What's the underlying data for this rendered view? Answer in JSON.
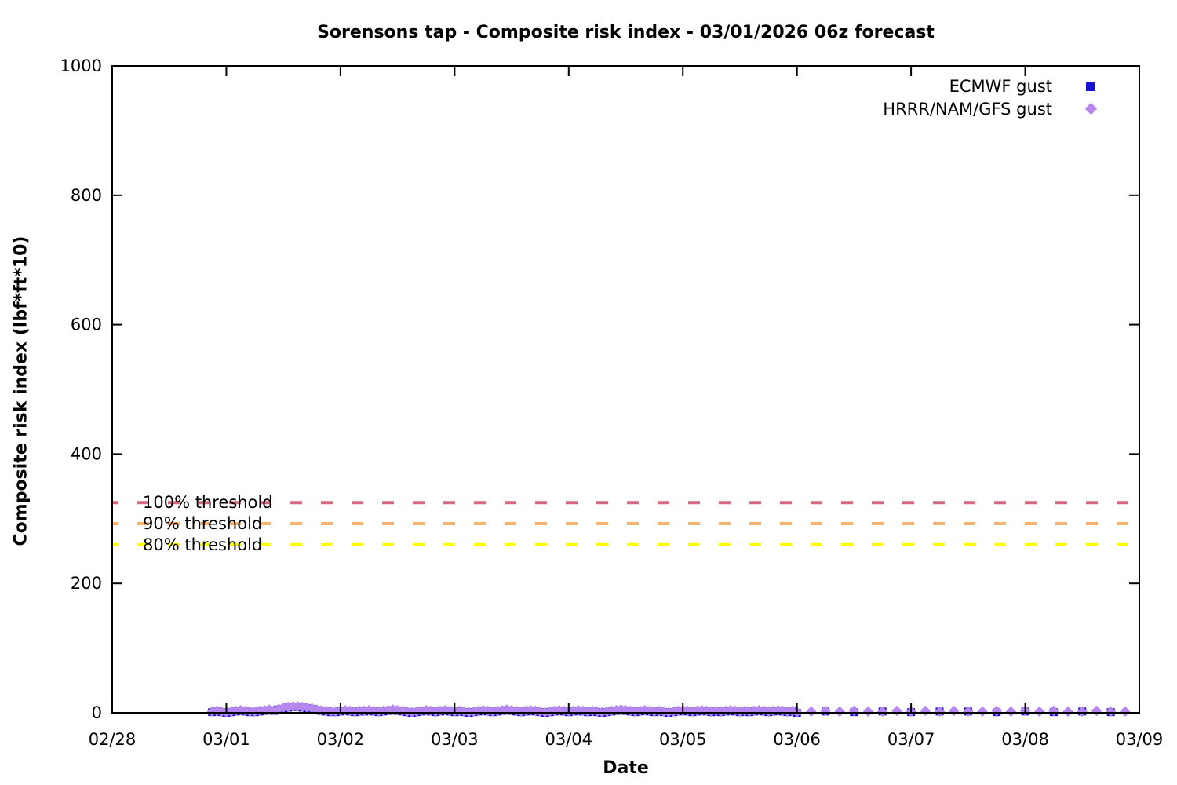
{
  "chart_data": {
    "type": "scatter",
    "title": "Sorensons tap - Composite risk index - 03/01/2026 06z forecast",
    "xlabel": "Date",
    "ylabel": "Composite risk index (lbf*ft*10)",
    "x_axis": {
      "tick_labels": [
        "02/28",
        "03/01",
        "03/02",
        "03/03",
        "03/04",
        "03/05",
        "03/06",
        "03/07",
        "03/08",
        "03/09"
      ],
      "hours_per_tick": 24,
      "hours_total": 216
    },
    "y_axis": {
      "ticks": [
        0,
        200,
        400,
        600,
        800,
        1000
      ],
      "lim": [
        0,
        1000
      ]
    },
    "grid": false,
    "legend_position": "top-right-inside",
    "thresholds": [
      {
        "label": "100% threshold",
        "value": 325,
        "color": "#d5687e"
      },
      {
        "label": "90% threshold",
        "value": 292.5,
        "color": "#f7b26e"
      },
      {
        "label": "80% threshold",
        "value": 260,
        "color": "#ffff00"
      }
    ],
    "series": [
      {
        "name": "ECMWF gust",
        "marker": "square",
        "color": "#1414d2",
        "segments": [
          {
            "start_hour": 21,
            "step_hours": 1,
            "values": [
              1,
              2,
              1,
              0,
              1,
              2,
              3,
              2,
              1,
              1,
              2,
              3,
              4,
              3,
              5,
              6,
              8,
              9,
              9,
              8,
              7,
              6,
              4,
              3,
              2,
              1,
              1,
              2,
              3,
              2,
              1,
              2,
              2,
              3,
              2,
              1,
              2,
              3,
              4,
              3,
              2,
              1,
              0,
              1,
              2,
              3,
              2,
              1,
              2,
              3,
              2,
              1,
              2,
              1,
              0,
              1,
              2,
              3,
              2,
              1,
              2,
              3,
              4,
              3,
              2,
              1,
              2,
              3,
              2,
              1,
              0,
              1,
              2,
              3,
              2,
              1,
              2,
              3,
              2,
              1,
              2,
              1,
              0,
              1,
              2,
              3,
              4,
              3,
              2,
              1,
              2,
              3,
              2,
              1,
              2,
              1,
              0,
              1,
              2,
              3,
              2,
              1,
              2,
              3,
              2,
              1,
              2,
              1,
              2,
              3,
              2,
              1,
              2,
              1,
              2,
              3,
              2,
              1,
              2,
              3,
              2,
              1,
              2,
              0
            ]
          },
          {
            "start_hour": 150,
            "step_hours": 6,
            "values": [
              2,
              1,
              2,
              1,
              2,
              2,
              1,
              2,
              1,
              2,
              1
            ]
          }
        ]
      },
      {
        "name": "HRRR/NAM/GFS gust",
        "marker": "diamond",
        "color": "#b787f0",
        "segments": [
          {
            "start_hour": 21,
            "step_hours": 1,
            "values": [
              2,
              3,
              2,
              1,
              2,
              3,
              4,
              3,
              2,
              2,
              3,
              4,
              5,
              4,
              6,
              8,
              9,
              10,
              10,
              9,
              8,
              7,
              5,
              4,
              3,
              2,
              2,
              3,
              4,
              3,
              2,
              3,
              3,
              4,
              3,
              2,
              3,
              4,
              5,
              4,
              3,
              2,
              1,
              2,
              3,
              4,
              3,
              2,
              3,
              4,
              3,
              2,
              3,
              2,
              1,
              2,
              3,
              4,
              3,
              2,
              3,
              4,
              5,
              4,
              3,
              2,
              3,
              4,
              3,
              2,
              1,
              2,
              3,
              4,
              3,
              2,
              3,
              4,
              3,
              2,
              3,
              2,
              1,
              2,
              3,
              4,
              5,
              4,
              3,
              2,
              3,
              4,
              3,
              2,
              3,
              2,
              1,
              2,
              3,
              4,
              3,
              2,
              3,
              4,
              3,
              2,
              3,
              2,
              3,
              4,
              3,
              2,
              3,
              2,
              3,
              4,
              3,
              2,
              3,
              4,
              3,
              2,
              3,
              1
            ]
          },
          {
            "start_hour": 147,
            "step_hours": 3,
            "values": [
              2,
              3,
              2,
              3,
              2,
              2,
              3,
              2,
              3,
              2,
              3,
              2,
              2,
              3,
              2,
              3,
              2,
              3,
              2,
              2,
              3,
              2,
              2
            ]
          }
        ]
      }
    ]
  },
  "colors": {
    "background": "#ffffff",
    "axis": "#000000",
    "text": "#000000"
  }
}
